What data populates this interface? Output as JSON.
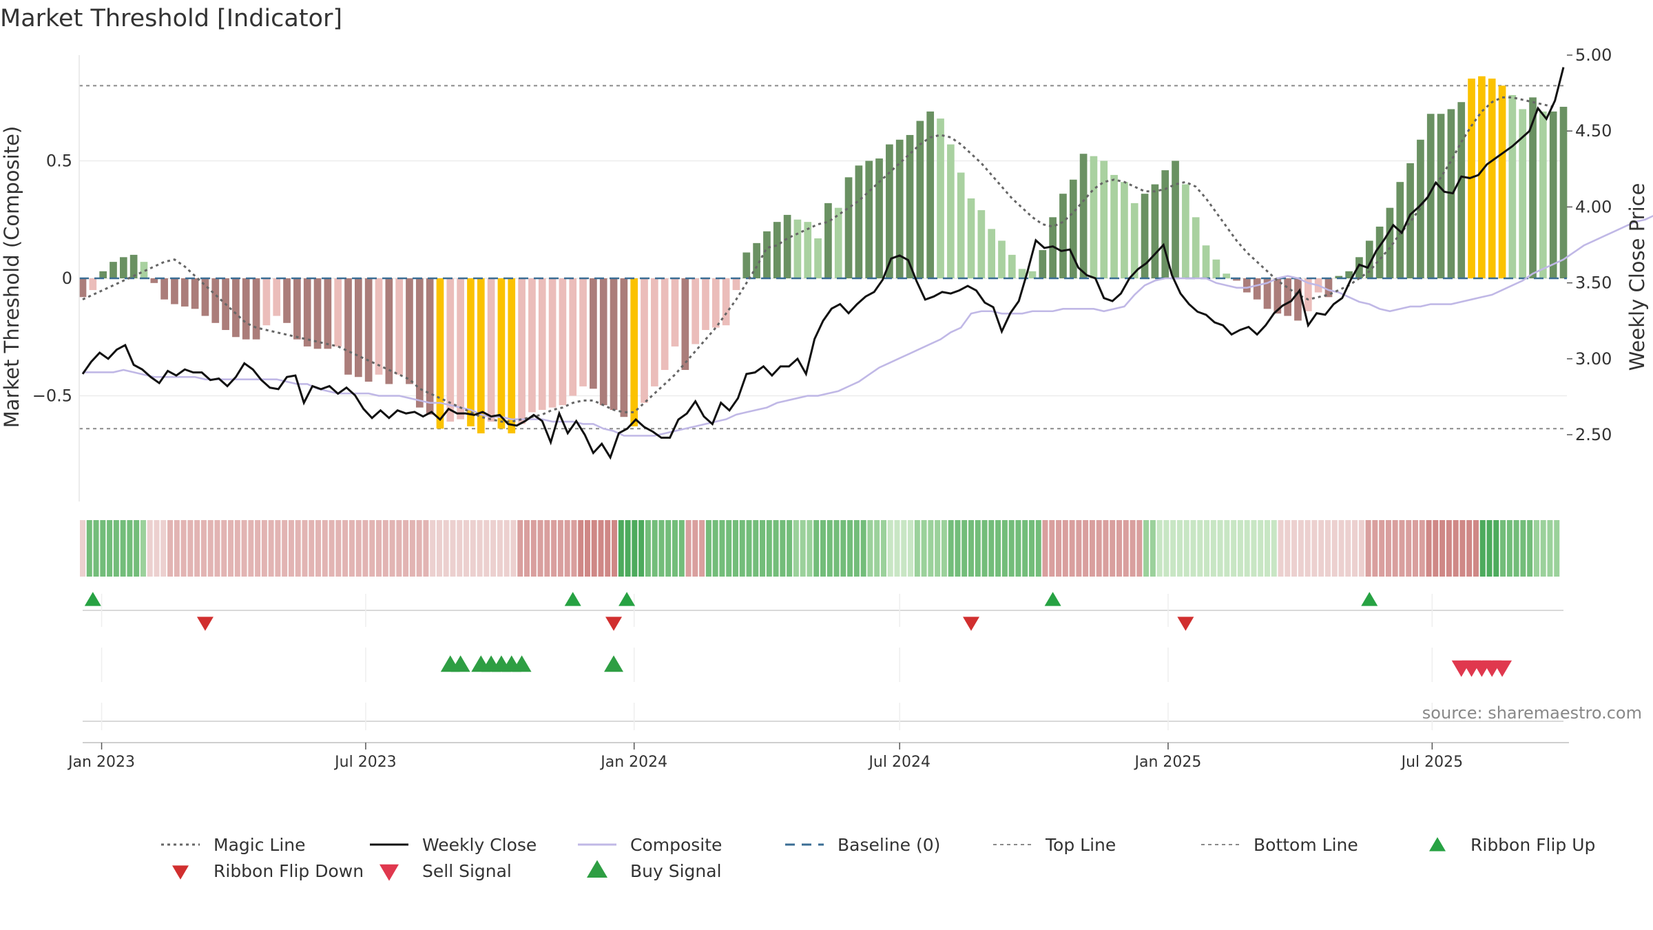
{
  "chart_data": {
    "type": "bar",
    "title": "Market Threshold [Indicator]",
    "ylabel": "Market Threshold (Composite)",
    "y2label": "Weekly Close Price",
    "source": "source: sharemaestro.com",
    "ylim": [
      -0.95,
      0.95
    ],
    "y2lim": [
      2.06,
      5.0
    ],
    "yticks": [
      {
        "v": 0.5,
        "label": "0.5"
      },
      {
        "v": 0,
        "label": "0"
      },
      {
        "v": -0.5,
        "label": "−0.5"
      }
    ],
    "y2ticks": [
      {
        "v": 5.0,
        "label": "5.00"
      },
      {
        "v": 4.5,
        "label": "4.50"
      },
      {
        "v": 4.0,
        "label": "4.00"
      },
      {
        "v": 3.5,
        "label": "3.50"
      },
      {
        "v": 3.0,
        "label": "3.00"
      },
      {
        "v": 2.5,
        "label": "2.50"
      }
    ],
    "x_start": "2022-12-19",
    "x_end": "2025-09-29",
    "xticks": [
      {
        "date": "2023-01-01",
        "label": "Jan 2023"
      },
      {
        "date": "2023-07-01",
        "label": "Jul 2023"
      },
      {
        "date": "2024-01-01",
        "label": "Jan 2024"
      },
      {
        "date": "2024-07-01",
        "label": "Jul 2024"
      },
      {
        "date": "2025-01-01",
        "label": "Jan 2025"
      },
      {
        "date": "2025-07-01",
        "label": "Jul 2025"
      }
    ],
    "top_line": 0.82,
    "bottom_line": -0.64,
    "baseline": 0,
    "composite_bars": [
      -0.08,
      -0.05,
      0.03,
      0.07,
      0.09,
      0.1,
      0.07,
      -0.02,
      -0.09,
      -0.11,
      -0.12,
      -0.13,
      -0.16,
      -0.19,
      -0.22,
      -0.25,
      -0.26,
      -0.26,
      -0.2,
      -0.16,
      -0.19,
      -0.26,
      -0.29,
      -0.3,
      -0.3,
      -0.29,
      -0.41,
      -0.42,
      -0.44,
      -0.41,
      -0.45,
      -0.41,
      -0.45,
      -0.55,
      -0.58,
      -0.64,
      -0.61,
      -0.6,
      -0.63,
      -0.66,
      -0.61,
      -0.64,
      -0.66,
      -0.62,
      -0.57,
      -0.56,
      -0.55,
      -0.54,
      -0.5,
      -0.46,
      -0.47,
      -0.54,
      -0.56,
      -0.59,
      -0.63,
      -0.53,
      -0.46,
      -0.39,
      -0.29,
      -0.39,
      -0.28,
      -0.22,
      -0.21,
      -0.2,
      -0.05,
      0.11,
      0.15,
      0.2,
      0.24,
      0.27,
      0.25,
      0.24,
      0.17,
      0.32,
      0.3,
      0.43,
      0.48,
      0.5,
      0.51,
      0.57,
      0.59,
      0.61,
      0.67,
      0.71,
      0.68,
      0.57,
      0.45,
      0.34,
      0.29,
      0.21,
      0.16,
      0.1,
      0.04,
      0.03,
      0.12,
      0.26,
      0.36,
      0.42,
      0.53,
      0.52,
      0.5,
      0.44,
      0.41,
      0.32,
      0.36,
      0.4,
      0.46,
      0.5,
      0.4,
      0.26,
      0.14,
      0.08,
      0.02,
      -0.01,
      -0.06,
      -0.09,
      -0.13,
      -0.15,
      -0.16,
      -0.18,
      -0.14,
      -0.06,
      -0.08,
      0.01,
      0.03,
      0.09,
      0.16,
      0.22,
      0.3,
      0.41,
      0.49,
      0.59,
      0.7,
      0.7,
      0.72,
      0.75,
      0.85,
      0.86,
      0.85,
      0.82,
      0.78,
      0.72,
      0.77,
      0.71,
      0.71,
      0.73
    ],
    "composite_line": [
      -0.4,
      -0.4,
      -0.4,
      -0.4,
      -0.39,
      -0.4,
      -0.41,
      -0.42,
      -0.42,
      -0.42,
      -0.42,
      -0.42,
      -0.43,
      -0.43,
      -0.43,
      -0.43,
      -0.43,
      -0.43,
      -0.43,
      -0.43,
      -0.44,
      -0.45,
      -0.45,
      -0.47,
      -0.48,
      -0.49,
      -0.49,
      -0.49,
      -0.49,
      -0.5,
      -0.5,
      -0.5,
      -0.51,
      -0.52,
      -0.53,
      -0.53,
      -0.54,
      -0.55,
      -0.56,
      -0.58,
      -0.59,
      -0.59,
      -0.6,
      -0.6,
      -0.6,
      -0.6,
      -0.61,
      -0.61,
      -0.61,
      -0.62,
      -0.62,
      -0.64,
      -0.65,
      -0.67,
      -0.67,
      -0.67,
      -0.67,
      -0.66,
      -0.65,
      -0.64,
      -0.63,
      -0.62,
      -0.61,
      -0.6,
      -0.58,
      -0.57,
      -0.56,
      -0.55,
      -0.53,
      -0.52,
      -0.51,
      -0.5,
      -0.5,
      -0.49,
      -0.48,
      -0.46,
      -0.44,
      -0.41,
      -0.38,
      -0.36,
      -0.34,
      -0.32,
      -0.3,
      -0.28,
      -0.26,
      -0.23,
      -0.21,
      -0.15,
      -0.14,
      -0.14,
      -0.15,
      -0.15,
      -0.15,
      -0.14,
      -0.14,
      -0.14,
      -0.13,
      -0.13,
      -0.13,
      -0.13,
      -0.14,
      -0.13,
      -0.12,
      -0.07,
      -0.03,
      -0.01,
      0.0,
      0.0,
      0.0,
      0.0,
      0.0,
      -0.02,
      -0.03,
      -0.04,
      -0.04,
      -0.03,
      -0.02,
      0.0,
      0.01,
      0.0,
      -0.02,
      -0.03,
      -0.05,
      -0.06,
      -0.08,
      -0.1,
      -0.11,
      -0.13,
      -0.14,
      -0.13,
      -0.12,
      -0.12,
      -0.11,
      -0.11,
      -0.11,
      -0.1,
      -0.09,
      -0.08,
      -0.07,
      -0.05,
      -0.03,
      -0.01,
      0.02,
      0.04,
      0.06,
      0.08,
      0.11,
      0.14,
      0.16,
      0.18,
      0.2,
      0.22,
      0.24,
      0.25,
      0.27,
      0.29,
      0.31,
      0.32,
      0.33,
      0.35,
      0.38,
      0.41
    ],
    "magic_line": [
      -0.09,
      -0.07,
      -0.05,
      -0.03,
      -0.01,
      0.01,
      0.03,
      0.05,
      0.07,
      0.08,
      0.05,
      0.01,
      -0.03,
      -0.07,
      -0.11,
      -0.15,
      -0.19,
      -0.21,
      -0.22,
      -0.23,
      -0.24,
      -0.25,
      -0.26,
      -0.27,
      -0.28,
      -0.29,
      -0.31,
      -0.33,
      -0.35,
      -0.37,
      -0.39,
      -0.41,
      -0.43,
      -0.47,
      -0.49,
      -0.51,
      -0.53,
      -0.55,
      -0.57,
      -0.59,
      -0.6,
      -0.61,
      -0.61,
      -0.6,
      -0.59,
      -0.58,
      -0.56,
      -0.55,
      -0.53,
      -0.52,
      -0.52,
      -0.54,
      -0.56,
      -0.57,
      -0.57,
      -0.53,
      -0.49,
      -0.45,
      -0.41,
      -0.36,
      -0.31,
      -0.26,
      -0.21,
      -0.15,
      -0.09,
      -0.02,
      0.05,
      0.13,
      0.14,
      0.17,
      0.19,
      0.21,
      0.23,
      0.24,
      0.27,
      0.3,
      0.33,
      0.37,
      0.41,
      0.45,
      0.49,
      0.53,
      0.57,
      0.6,
      0.61,
      0.6,
      0.57,
      0.53,
      0.49,
      0.44,
      0.39,
      0.34,
      0.3,
      0.26,
      0.23,
      0.22,
      0.24,
      0.28,
      0.33,
      0.38,
      0.41,
      0.42,
      0.41,
      0.39,
      0.37,
      0.37,
      0.38,
      0.4,
      0.41,
      0.39,
      0.34,
      0.28,
      0.22,
      0.16,
      0.11,
      0.07,
      0.03,
      -0.01,
      -0.04,
      -0.07,
      -0.09,
      -0.08,
      -0.07,
      -0.05,
      -0.03,
      0.0,
      0.03,
      0.08,
      0.13,
      0.19,
      0.24,
      0.3,
      0.37,
      0.43,
      0.5,
      0.58,
      0.65,
      0.71,
      0.75,
      0.77,
      0.77,
      0.76,
      0.75,
      0.74,
      0.73
    ],
    "weekly_close": [
      2.9,
      2.98,
      3.04,
      3.0,
      3.06,
      3.09,
      2.96,
      2.93,
      2.88,
      2.84,
      2.92,
      2.89,
      2.93,
      2.91,
      2.91,
      2.86,
      2.87,
      2.82,
      2.88,
      2.97,
      2.93,
      2.86,
      2.81,
      2.8,
      2.88,
      2.89,
      2.71,
      2.82,
      2.8,
      2.82,
      2.77,
      2.81,
      2.76,
      2.67,
      2.61,
      2.66,
      2.61,
      2.66,
      2.64,
      2.65,
      2.62,
      2.65,
      2.6,
      2.67,
      2.64,
      2.64,
      2.63,
      2.65,
      2.62,
      2.63,
      2.57,
      2.56,
      2.59,
      2.63,
      2.59,
      2.45,
      2.64,
      2.51,
      2.59,
      2.5,
      2.38,
      2.44,
      2.35,
      2.51,
      2.54,
      2.6,
      2.55,
      2.52,
      2.48,
      2.48,
      2.6,
      2.64,
      2.72,
      2.62,
      2.57,
      2.71,
      2.66,
      2.74,
      2.9,
      2.91,
      2.95,
      2.89,
      2.95,
      2.95,
      3.0,
      2.9,
      3.13,
      3.25,
      3.33,
      3.36,
      3.3,
      3.36,
      3.41,
      3.44,
      3.52,
      3.66,
      3.68,
      3.65,
      3.51,
      3.39,
      3.41,
      3.44,
      3.43,
      3.45,
      3.48,
      3.45,
      3.37,
      3.34,
      3.18,
      3.3,
      3.38,
      3.57,
      3.78,
      3.73,
      3.74,
      3.71,
      3.72,
      3.6,
      3.55,
      3.53,
      3.4,
      3.38,
      3.43,
      3.53,
      3.59,
      3.63,
      3.69,
      3.75,
      3.55,
      3.43,
      3.36,
      3.31,
      3.29,
      3.24,
      3.22,
      3.16,
      3.19,
      3.21,
      3.16,
      3.22,
      3.3,
      3.35,
      3.38,
      3.45,
      3.22,
      3.3,
      3.29,
      3.36,
      3.4,
      3.52,
      3.62,
      3.6,
      3.71,
      3.79,
      3.88,
      3.83,
      3.95,
      4.0,
      4.06,
      4.16,
      4.1,
      4.09,
      4.2,
      4.19,
      4.21,
      4.28,
      4.32,
      4.36,
      4.4,
      4.45,
      4.5,
      4.65,
      4.58,
      4.7,
      4.92
    ],
    "ribbon": [
      1,
      3,
      3,
      3,
      3,
      3,
      3,
      3,
      3,
      2,
      1,
      1,
      1,
      2,
      2,
      2,
      2,
      2,
      2,
      2,
      2,
      2,
      2,
      2,
      2,
      2,
      2,
      2,
      2,
      2,
      2,
      2,
      2,
      2,
      2,
      2,
      2,
      2,
      2,
      2,
      2,
      2,
      2,
      2,
      2,
      2,
      2,
      2,
      2,
      2,
      2,
      2,
      1,
      1,
      1,
      1,
      1,
      1,
      1,
      1,
      1,
      1,
      1,
      1,
      1,
      3,
      3,
      3,
      3,
      3,
      3,
      3,
      3,
      3,
      4,
      4,
      4,
      4,
      4,
      4,
      4,
      4,
      4,
      4,
      3,
      3,
      3,
      3,
      3,
      3,
      3,
      3,
      3,
      3,
      3,
      3,
      3,
      3,
      3,
      3,
      3,
      3,
      3,
      3,
      3,
      3,
      2,
      2,
      2,
      3,
      3,
      3,
      3,
      3,
      3,
      3,
      3,
      2,
      2,
      2,
      1,
      1,
      1,
      1,
      2,
      2,
      2,
      2,
      2,
      3,
      3,
      3,
      3,
      3,
      3,
      3,
      3,
      3,
      3,
      3,
      3,
      3,
      3,
      3,
      3,
      3,
      3,
      3,
      3,
      3,
      3,
      3,
      3,
      3,
      3,
      3,
      3,
      3,
      2,
      2,
      1,
      1,
      1,
      1,
      1,
      1,
      1,
      1,
      1,
      1,
      1,
      1,
      1,
      1,
      1,
      1,
      1,
      1,
      1,
      1,
      1,
      1,
      1,
      1,
      1,
      1,
      1,
      1,
      1,
      1,
      1,
      3,
      3,
      3,
      3,
      3,
      3,
      3,
      3,
      3,
      4,
      4,
      4,
      4,
      4,
      4,
      4,
      4,
      4,
      4,
      4,
      3,
      3,
      3,
      3,
      3,
      2,
      2,
      2,
      2
    ],
    "ribbon_sign": [
      -1,
      1,
      1,
      1,
      1,
      1,
      1,
      1,
      1,
      1,
      -1,
      -1,
      -1,
      -1,
      -1,
      -1,
      -1,
      -1,
      -1,
      -1,
      -1,
      -1,
      -1,
      -1,
      -1,
      -1,
      -1,
      -1,
      -1,
      -1,
      -1,
      -1,
      -1,
      -1,
      -1,
      -1,
      -1,
      -1,
      -1,
      -1,
      -1,
      -1,
      -1,
      -1,
      -1,
      -1,
      -1,
      -1,
      -1,
      -1,
      -1,
      -1,
      -1,
      -1,
      -1,
      -1,
      -1,
      -1,
      -1,
      -1,
      -1,
      -1,
      -1,
      -1,
      -1,
      -1,
      -1,
      -1,
      -1,
      -1,
      -1,
      -1,
      -1,
      -1,
      -1,
      -1,
      -1,
      -1,
      -1,
      -1,
      1,
      1,
      1,
      1,
      1,
      1,
      1,
      1,
      1,
      1,
      -1,
      -1,
      -1,
      1,
      1,
      1,
      1,
      1,
      1,
      1,
      1,
      1,
      1,
      1,
      1,
      1,
      1,
      1,
      1,
      1,
      1,
      1,
      1,
      1,
      1,
      1,
      1,
      1,
      1,
      1,
      1,
      1,
      1,
      1,
      1,
      1,
      1,
      1,
      1,
      1,
      1,
      1,
      1,
      1,
      1,
      1,
      1,
      1,
      1,
      1,
      1,
      1,
      1,
      -1,
      -1,
      -1,
      -1,
      -1,
      -1,
      -1,
      -1,
      -1,
      -1,
      -1,
      -1,
      -1,
      -1,
      -1,
      1,
      1,
      1,
      1,
      1,
      1,
      1,
      1,
      1,
      1,
      1,
      1,
      1,
      1,
      1,
      1,
      1,
      1,
      1,
      1,
      -1,
      -1,
      -1,
      -1,
      -1,
      -1,
      -1,
      -1,
      -1,
      -1,
      -1,
      -1,
      -1,
      -1,
      -1,
      -1,
      -1,
      -1,
      -1,
      -1,
      -1,
      -1,
      -1,
      -1,
      -1,
      -1,
      -1,
      -1,
      -1,
      -1,
      1,
      1,
      1,
      1,
      1,
      1,
      1,
      1,
      1,
      1,
      1,
      1,
      1,
      1,
      1,
      1,
      1,
      1,
      1,
      1,
      1,
      1,
      1,
      1,
      1,
      1,
      1,
      1,
      1
    ],
    "ribbon_flip_up": [
      "2022-12-26",
      "2023-11-20",
      "2023-12-27",
      "2024-10-14",
      "2025-05-19"
    ],
    "ribbon_flip_down": [
      "2023-03-13",
      "2023-12-18",
      "2024-08-19",
      "2025-01-13"
    ],
    "buy_signals": [
      "2023-08-28",
      "2023-09-04",
      "2023-09-18",
      "2023-09-25",
      "2023-10-02",
      "2023-10-09",
      "2023-10-16",
      "2023-12-18"
    ],
    "sell_signals": [
      "2025-07-21",
      "2025-07-28",
      "2025-08-04",
      "2025-08-11",
      "2025-08-18"
    ],
    "legend": [
      {
        "key": "magic",
        "label": "Magic Line"
      },
      {
        "key": "close",
        "label": "Weekly Close"
      },
      {
        "key": "composite",
        "label": "Composite"
      },
      {
        "key": "baseline",
        "label": "Baseline (0)"
      },
      {
        "key": "top",
        "label": "Top Line"
      },
      {
        "key": "bottom",
        "label": "Bottom Line"
      },
      {
        "key": "flipup",
        "label": "Ribbon Flip Up"
      },
      {
        "key": "flipdown",
        "label": "Ribbon Flip Down"
      },
      {
        "key": "sell",
        "label": "Sell Signal"
      },
      {
        "key": "buy",
        "label": "Buy Signal"
      }
    ],
    "colors": {
      "pos_strong": "#6a9162",
      "pos_weak": "#a9d1a0",
      "neg_strong": "#ab7d7a",
      "neg_weak": "#ebbdba",
      "extreme": "#fbc200",
      "magic": "#666666",
      "close": "#111111",
      "composite": "#c0b8e6",
      "baseline": "#3a6d94",
      "guide": "#8a8a8a",
      "flip_up": "#27a243",
      "flip_down": "#d12f2f",
      "buy": "#2e9e43",
      "sell": "#e0384e",
      "ribbon_pos": [
        "#dff0dc",
        "#c8e6c4",
        "#9bd19b",
        "#73bd7a",
        "#4dab5d"
      ],
      "ribbon_neg": [
        "#f3dada",
        "#ecd0cf",
        "#e2b4b3",
        "#d99f9e",
        "#cf8886"
      ]
    }
  }
}
